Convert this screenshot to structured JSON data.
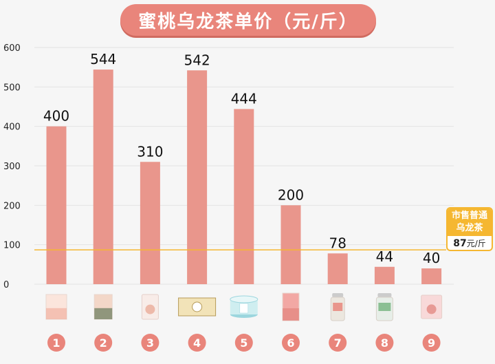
{
  "title": "蜜桃乌龙茶单价（元/斤）",
  "reference": {
    "label_line1": "市售普通",
    "label_line2": "乌龙茶",
    "value": "87",
    "unit": "元/斤",
    "line_value": 87
  },
  "colors": {
    "bar": "#e9968c",
    "title_bg": "#e9857b",
    "badge": "#e9857b",
    "reference_line": "#f5b731",
    "grid": "#e3e3e3"
  },
  "chart_data": {
    "type": "bar",
    "categories": [
      "1",
      "2",
      "3",
      "4",
      "5",
      "6",
      "7",
      "8",
      "9"
    ],
    "values": [
      400,
      544,
      310,
      542,
      444,
      200,
      78,
      44,
      40
    ],
    "title": "蜜桃乌龙茶单价（元/斤）",
    "xlabel": "",
    "ylabel": "",
    "ylim": [
      0,
      600
    ],
    "yticks": [
      0,
      100,
      200,
      300,
      400,
      500,
      600
    ],
    "grid": true,
    "legend": "none"
  }
}
